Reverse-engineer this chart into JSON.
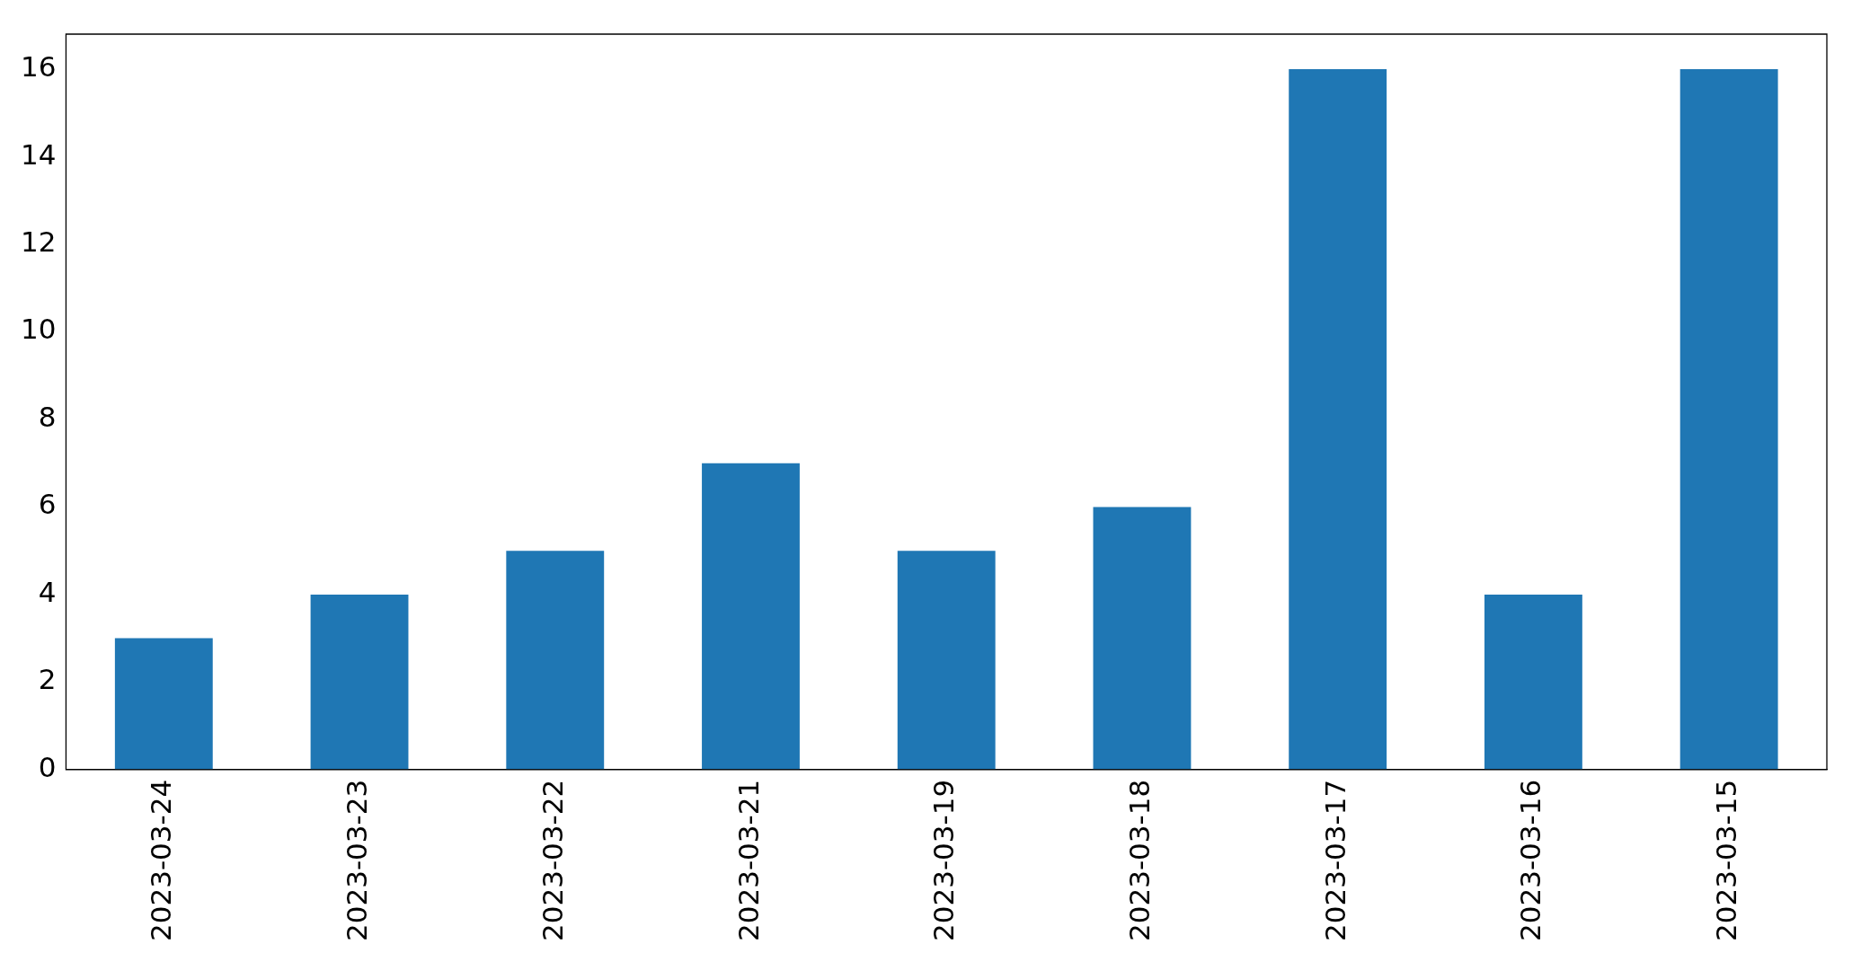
{
  "chart_data": {
    "type": "bar",
    "categories": [
      "2023-03-24",
      "2023-03-23",
      "2023-03-22",
      "2023-03-21",
      "2023-03-19",
      "2023-03-18",
      "2023-03-17",
      "2023-03-16",
      "2023-03-15"
    ],
    "values": [
      3,
      4,
      5,
      7,
      5,
      6,
      16,
      4,
      16
    ],
    "color": "#1f77b4",
    "ylim": [
      0,
      16.8
    ],
    "yticks": [
      0,
      2,
      4,
      6,
      8,
      10,
      12,
      14,
      16
    ],
    "grid": false,
    "legend": false
  }
}
